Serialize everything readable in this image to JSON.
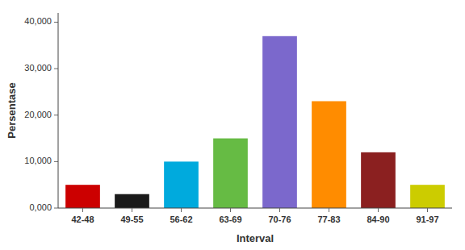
{
  "chart_data": {
    "type": "bar",
    "categories": [
      "42-48",
      "49-55",
      "56-62",
      "63-69",
      "70-76",
      "77-83",
      "84-90",
      "91-97"
    ],
    "values": [
      5000,
      3000,
      10000,
      15000,
      37000,
      23000,
      12000,
      5000
    ],
    "colors": [
      "#CC0000",
      "#1A1A1A",
      "#00AADD",
      "#66BB44",
      "#7B68CC",
      "#FF8C00",
      "#8B2020",
      "#CCCC00"
    ],
    "xlabel": "Interval",
    "ylabel": "Persentase",
    "ylim": [
      0,
      42000
    ],
    "yticks": [
      {
        "value": 0,
        "label": "0,000"
      },
      {
        "value": 10000,
        "label": "10,000"
      },
      {
        "value": 20000,
        "label": "20,000"
      },
      {
        "value": 30000,
        "label": "30,000"
      },
      {
        "value": 40000,
        "label": "40,000"
      }
    ],
    "grid": false
  }
}
